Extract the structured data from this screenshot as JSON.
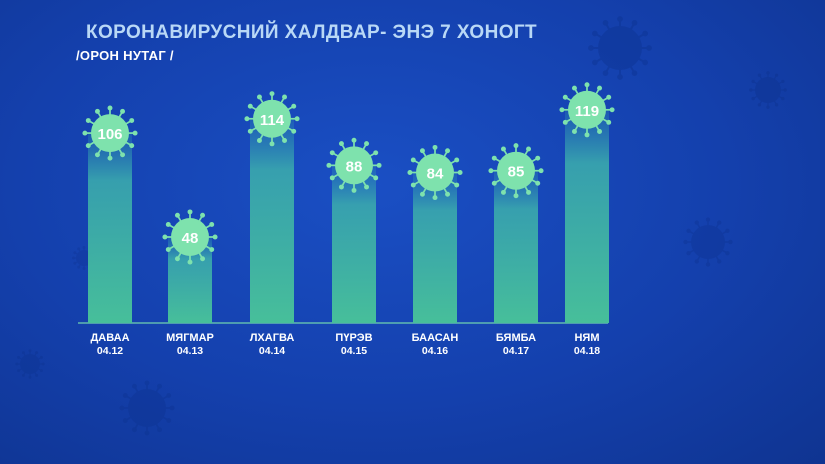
{
  "header": {
    "title": "КОРОНАВИРУСНИЙ ХАЛДВАР- ЭНЭ 7 ХОНОГТ",
    "subtitle": "/ОРОН НУТАГ /"
  },
  "colors": {
    "background": "#1440ad",
    "bar_top": "#3aa9ad",
    "bar_bottom": "#47bf9a",
    "virus": "#7ee2ad",
    "value_text": "#ffffff",
    "label_text": "#ffffff",
    "title_text": "#b9d8f6"
  },
  "chart_data": {
    "type": "bar",
    "title": "КОРОНАВИРУСНИЙ ХАЛДВАР- ЭНЭ 7 ХОНОГТ",
    "subtitle": "/ОРОН НУТАГ /",
    "categories": [
      {
        "day": "ДАВАА",
        "date": "04.12"
      },
      {
        "day": "МЯГМАР",
        "date": "04.13"
      },
      {
        "day": "ЛХАГВА",
        "date": "04.14"
      },
      {
        "day": "ПҮРЭВ",
        "date": "04.15"
      },
      {
        "day": "БААСАН",
        "date": "04.16"
      },
      {
        "day": "БЯМБА",
        "date": "04.17"
      },
      {
        "day": "НЯМ",
        "date": "04.18"
      }
    ],
    "values": [
      106,
      48,
      114,
      88,
      84,
      85,
      119
    ],
    "data_labels": true,
    "ylim": [
      0,
      120
    ],
    "grid": false,
    "marker": "virus-icon"
  }
}
